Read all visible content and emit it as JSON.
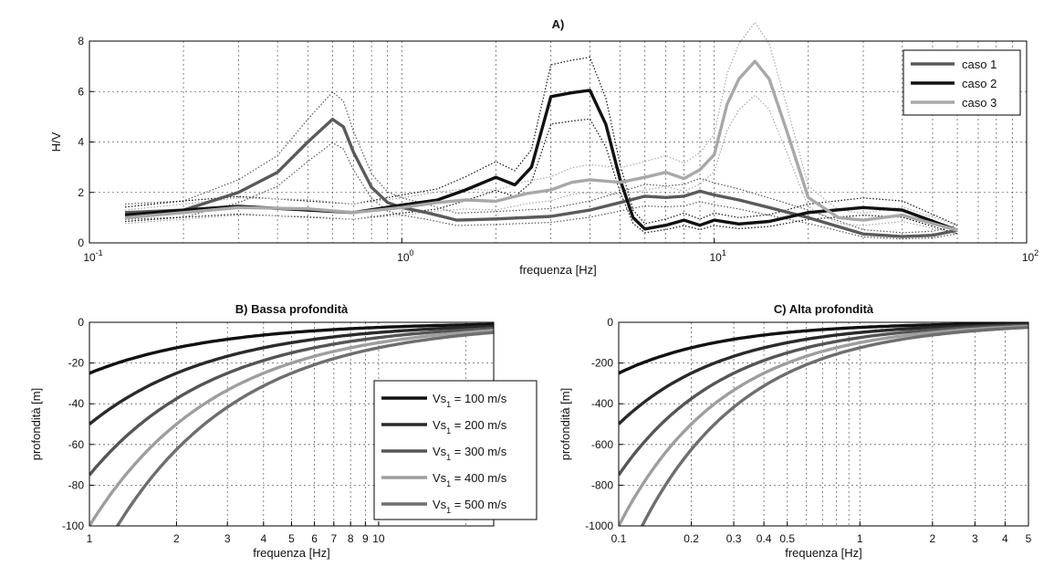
{
  "chart_data": [
    {
      "panel": "A",
      "type": "line",
      "title": "A)",
      "xlabel": "frequenza [Hz]",
      "ylabel": "H/V",
      "xscale": "log",
      "xlim": [
        0.1,
        100
      ],
      "ylim": [
        0,
        8
      ],
      "x_tick_labels": [
        "10-1",
        "100",
        "101",
        "102"
      ],
      "y_ticks": [
        0,
        2,
        4,
        6,
        8
      ],
      "grid": true,
      "legend": "top-right",
      "series": [
        {
          "name": "caso 1",
          "color": "#5a5a5a",
          "x": [
            0.13,
            0.2,
            0.3,
            0.4,
            0.5,
            0.6,
            0.65,
            0.7,
            0.8,
            0.9,
            1.0,
            1.2,
            1.5,
            2,
            3,
            4,
            5,
            6,
            7,
            8,
            9,
            10,
            12,
            15,
            20,
            30,
            40,
            50,
            60
          ],
          "y": [
            1.2,
            1.3,
            2.0,
            2.8,
            4.0,
            4.9,
            4.6,
            3.6,
            2.2,
            1.6,
            1.4,
            1.2,
            0.9,
            0.95,
            1.05,
            1.3,
            1.6,
            1.85,
            1.8,
            1.85,
            2.05,
            1.9,
            1.7,
            1.4,
            1.0,
            0.35,
            0.25,
            0.3,
            0.5
          ]
        },
        {
          "name": "caso 2",
          "color": "#111111",
          "x": [
            0.13,
            0.2,
            0.3,
            0.5,
            0.7,
            1.0,
            1.3,
            1.6,
            2,
            2.3,
            2.6,
            3,
            3.5,
            4,
            4.5,
            5,
            5.5,
            6,
            7,
            8,
            9,
            10,
            12,
            15,
            20,
            30,
            40,
            60
          ],
          "y": [
            1.1,
            1.3,
            1.45,
            1.3,
            1.2,
            1.5,
            1.7,
            2.1,
            2.6,
            2.3,
            3.0,
            5.8,
            5.95,
            6.05,
            4.7,
            2.5,
            1.0,
            0.55,
            0.7,
            0.9,
            0.7,
            0.9,
            0.75,
            0.85,
            1.2,
            1.4,
            1.3,
            0.5
          ]
        },
        {
          "name": "caso 3",
          "color": "#a8a8a8",
          "x": [
            0.13,
            0.2,
            0.3,
            0.5,
            0.7,
            1.0,
            1.3,
            1.6,
            2,
            2.5,
            3,
            3.5,
            4,
            5,
            6,
            7,
            8,
            9,
            10,
            11,
            12,
            13.5,
            15,
            17,
            20,
            25,
            30,
            40,
            60
          ],
          "y": [
            1.0,
            1.2,
            1.4,
            1.35,
            1.2,
            1.4,
            1.6,
            1.7,
            1.65,
            1.95,
            2.1,
            2.4,
            2.5,
            2.4,
            2.6,
            2.8,
            2.55,
            2.9,
            3.5,
            5.5,
            6.5,
            7.2,
            6.5,
            4.5,
            1.8,
            1.0,
            0.9,
            1.1,
            0.5
          ]
        }
      ]
    },
    {
      "panel": "B",
      "type": "line",
      "title": "B) Bassa profondità",
      "xlabel": "frequenza [Hz]",
      "ylabel": "profondità [m]",
      "xscale": "log",
      "xlim": [
        1,
        25
      ],
      "ylim": [
        -100,
        0
      ],
      "x_tick_labels": [
        "1",
        "2",
        "3",
        "4",
        "5",
        "6",
        "7",
        "8",
        "9",
        "10"
      ],
      "y_ticks": [
        0,
        -20,
        -40,
        -60,
        -80,
        -100
      ],
      "grid": true,
      "legend": "center-right",
      "series": [
        {
          "name": "Vs1 = 100 m/s",
          "label_main": "Vs",
          "label_sub": "1",
          "label_rest": " = 100 m/s",
          "color": "#111111",
          "vs": 100
        },
        {
          "name": "Vs1 = 200 m/s",
          "label_main": "Vs",
          "label_sub": "1",
          "label_rest": " = 200 m/s",
          "color": "#2a2a2a",
          "vs": 200
        },
        {
          "name": "Vs1 = 300 m/s",
          "label_main": "Vs",
          "label_sub": "1",
          "label_rest": " = 300 m/s",
          "color": "#555555",
          "vs": 300
        },
        {
          "name": "Vs1 = 400 m/s",
          "label_main": "Vs",
          "label_sub": "1",
          "label_rest": " = 400 m/s",
          "color": "#9e9e9e",
          "vs": 400
        },
        {
          "name": "Vs1 = 500 m/s",
          "label_main": "Vs",
          "label_sub": "1",
          "label_rest": " = 500 m/s",
          "color": "#6e6e6e",
          "vs": 500
        }
      ]
    },
    {
      "panel": "C",
      "type": "line",
      "title": "C) Alta profondità",
      "xlabel": "frequenza [Hz]",
      "ylabel": "profondità [m]",
      "xscale": "log",
      "xlim": [
        0.1,
        5
      ],
      "ylim": [
        -1000,
        0
      ],
      "x_tick_labels": [
        "0.1",
        "0.2",
        "0.3",
        "0.4",
        "0.5",
        "1",
        "2",
        "3",
        "4",
        "5"
      ],
      "y_ticks": [
        0,
        -200,
        -400,
        -600,
        -800,
        -1000
      ],
      "grid": true,
      "series": [
        {
          "name": "Vs1 = 100 m/s",
          "color": "#111111",
          "vs": 100
        },
        {
          "name": "Vs1 = 200 m/s",
          "color": "#2a2a2a",
          "vs": 200
        },
        {
          "name": "Vs1 = 300 m/s",
          "color": "#555555",
          "vs": 300
        },
        {
          "name": "Vs1 = 400 m/s",
          "color": "#9e9e9e",
          "vs": 400
        },
        {
          "name": "Vs1 = 500 m/s",
          "color": "#6e6e6e",
          "vs": 500
        }
      ]
    }
  ]
}
